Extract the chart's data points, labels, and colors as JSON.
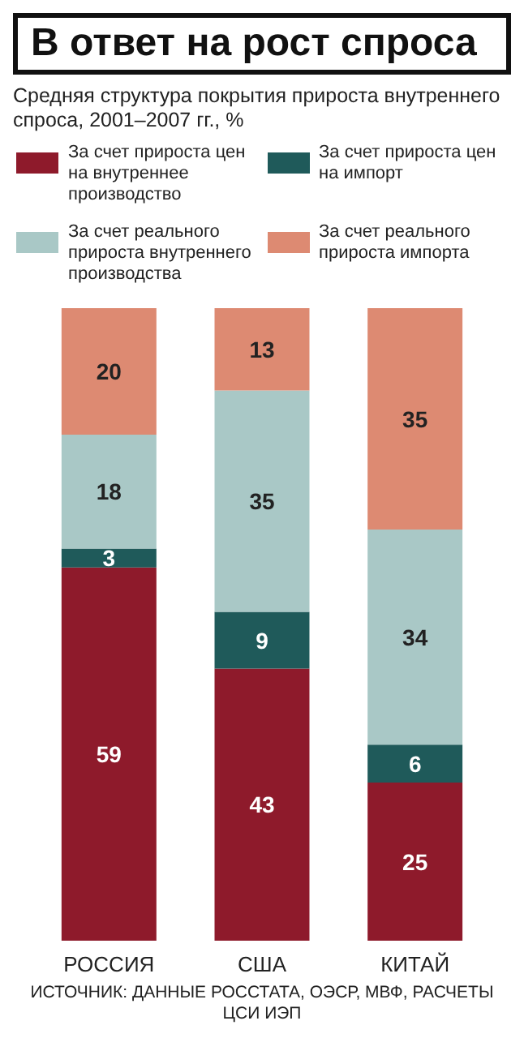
{
  "chart_data": {
    "type": "bar",
    "title": "В ответ на рост спроса",
    "subtitle": "Средняя структура покрытия прироста внутреннего спроса, 2001–2007 гг., %",
    "categories": [
      "РОССИЯ",
      "США",
      "КИТАЙ"
    ],
    "stacked": true,
    "data_labels": true,
    "tick_labels": "x",
    "legend": "top",
    "ylim": [
      0,
      100
    ],
    "series": [
      {
        "name": "За счет прироста цен на внутреннее производство",
        "color": "#8e1a2b",
        "values": [
          59,
          43,
          25
        ]
      },
      {
        "name": "За счет прироста цен на импорт",
        "color": "#1f5a5a",
        "values": [
          3,
          9,
          6
        ]
      },
      {
        "name": "За счет реального прироста внутреннего производства",
        "color": "#a9c8c6",
        "values": [
          18,
          35,
          34
        ]
      },
      {
        "name": "За счет реального прироста импорта",
        "color": "#dd8a72",
        "values": [
          20,
          13,
          35
        ]
      }
    ],
    "annotations": [
      "ИСТОЧНИК: ДАННЫЕ РОССТАТА, ОЭСР, МВФ, РАСЧЕТЫ ЦСИ ИЭП"
    ]
  }
}
